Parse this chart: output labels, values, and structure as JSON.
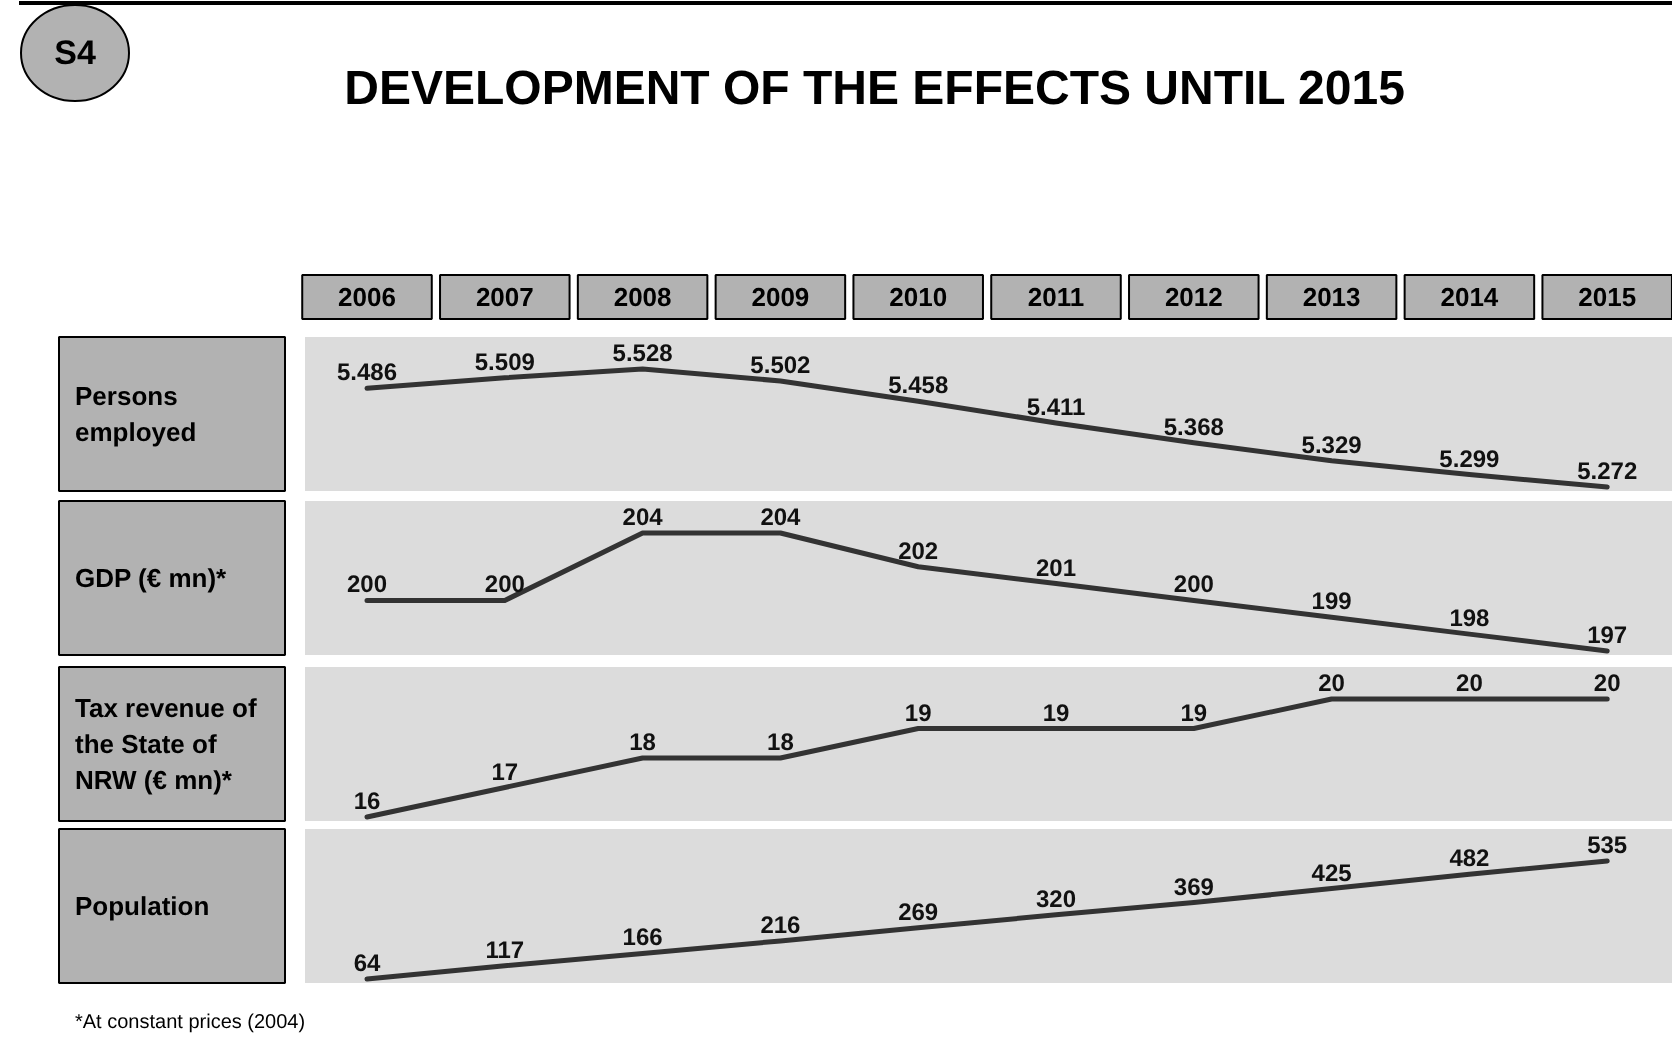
{
  "chart_data": [
    {
      "type": "line",
      "title": "DEVELOPMENT OF THE EFFECTS UNTIL 2015",
      "annotations": [
        "S4"
      ],
      "ylabel": "Persons employed",
      "categories": [
        "2006",
        "2007",
        "2008",
        "2009",
        "2010",
        "2011",
        "2012",
        "2013",
        "2014",
        "2015"
      ],
      "values": [
        5.486,
        5.509,
        5.528,
        5.502,
        5.458,
        5.411,
        5.368,
        5.329,
        5.299,
        5.272
      ],
      "color": "#333333",
      "data_labels": true,
      "tick_labels": "x"
    },
    {
      "type": "line",
      "ylabel": "GDP (€ mn)*",
      "categories": [
        "2006",
        "2007",
        "2008",
        "2009",
        "2010",
        "2011",
        "2012",
        "2013",
        "2014",
        "2015"
      ],
      "values": [
        200,
        200,
        204,
        204,
        202,
        201,
        200,
        199,
        198,
        197
      ],
      "color": "#333333",
      "data_labels": true,
      "tick_labels": false
    },
    {
      "type": "line",
      "ylabel": "Tax revenue of the State of NRW (€ mn)*",
      "categories": [
        "2006",
        "2007",
        "2008",
        "2009",
        "2010",
        "2011",
        "2012",
        "2013",
        "2014",
        "2015"
      ],
      "values": [
        16,
        17,
        18,
        18,
        19,
        19,
        19,
        20,
        20,
        20
      ],
      "color": "#333333",
      "data_labels": true,
      "tick_labels": false
    },
    {
      "type": "line",
      "ylabel": "Population",
      "annotations": [
        "*At constant prices (2004)"
      ],
      "categories": [
        "2006",
        "2007",
        "2008",
        "2009",
        "2010",
        "2011",
        "2012",
        "2013",
        "2014",
        "2015"
      ],
      "values": [
        64,
        117,
        166,
        216,
        269,
        320,
        369,
        425,
        482,
        535
      ],
      "color": "#333333",
      "data_labels": true,
      "tick_labels": false
    }
  ]
}
